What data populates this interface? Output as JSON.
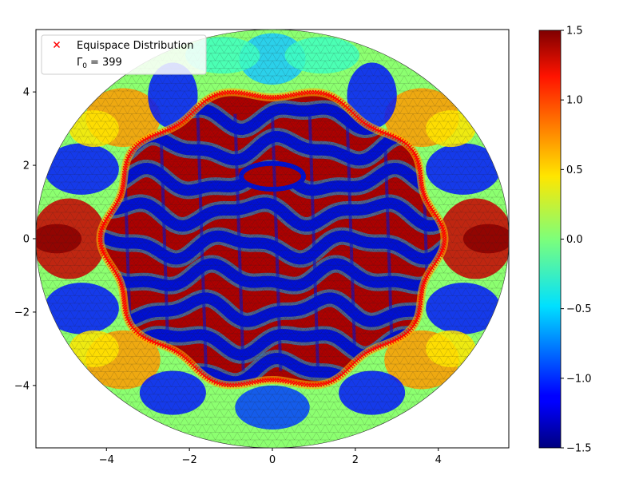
{
  "chart_data": {
    "type": "heatmap",
    "title": "",
    "xlabel": "",
    "ylabel": "",
    "xlim": [
      -5.7,
      5.7
    ],
    "ylim": [
      -5.7,
      5.7
    ],
    "xticks": [
      -4,
      -2,
      0,
      2,
      4
    ],
    "yticks": [
      -4,
      -2,
      0,
      2,
      4
    ],
    "xtick_labels": [
      "−4",
      "−2",
      "0",
      "2",
      "4"
    ],
    "ytick_labels": [
      "−4",
      "−2",
      "0",
      "2",
      "4"
    ],
    "domain": {
      "shape": "disk",
      "radius": 5.7
    },
    "mesh": "triangulated finite-element mesh",
    "colormap": "jet",
    "colorbar": {
      "min": -1.5,
      "max": 1.5,
      "ticks": [
        -1.5,
        -1.0,
        -0.5,
        0.0,
        0.5,
        1.0,
        1.5
      ],
      "tick_labels": [
        "−1.5",
        "−1.0",
        "−0.5",
        "0.0",
        "0.5",
        "1.0",
        "1.5"
      ]
    },
    "boundary": {
      "name": "Equispace Distribution",
      "marker": "x",
      "color": "#ff0000",
      "mean_radius": 4.0,
      "lobes": 10,
      "amplitude": 0.15
    },
    "legend": {
      "location": "upper-left",
      "entries": [
        "Equispace Distribution",
        "Γ0 = 399"
      ]
    },
    "annotation": {
      "symbol": "Γ",
      "subscript": "0",
      "value": "= 399"
    }
  }
}
